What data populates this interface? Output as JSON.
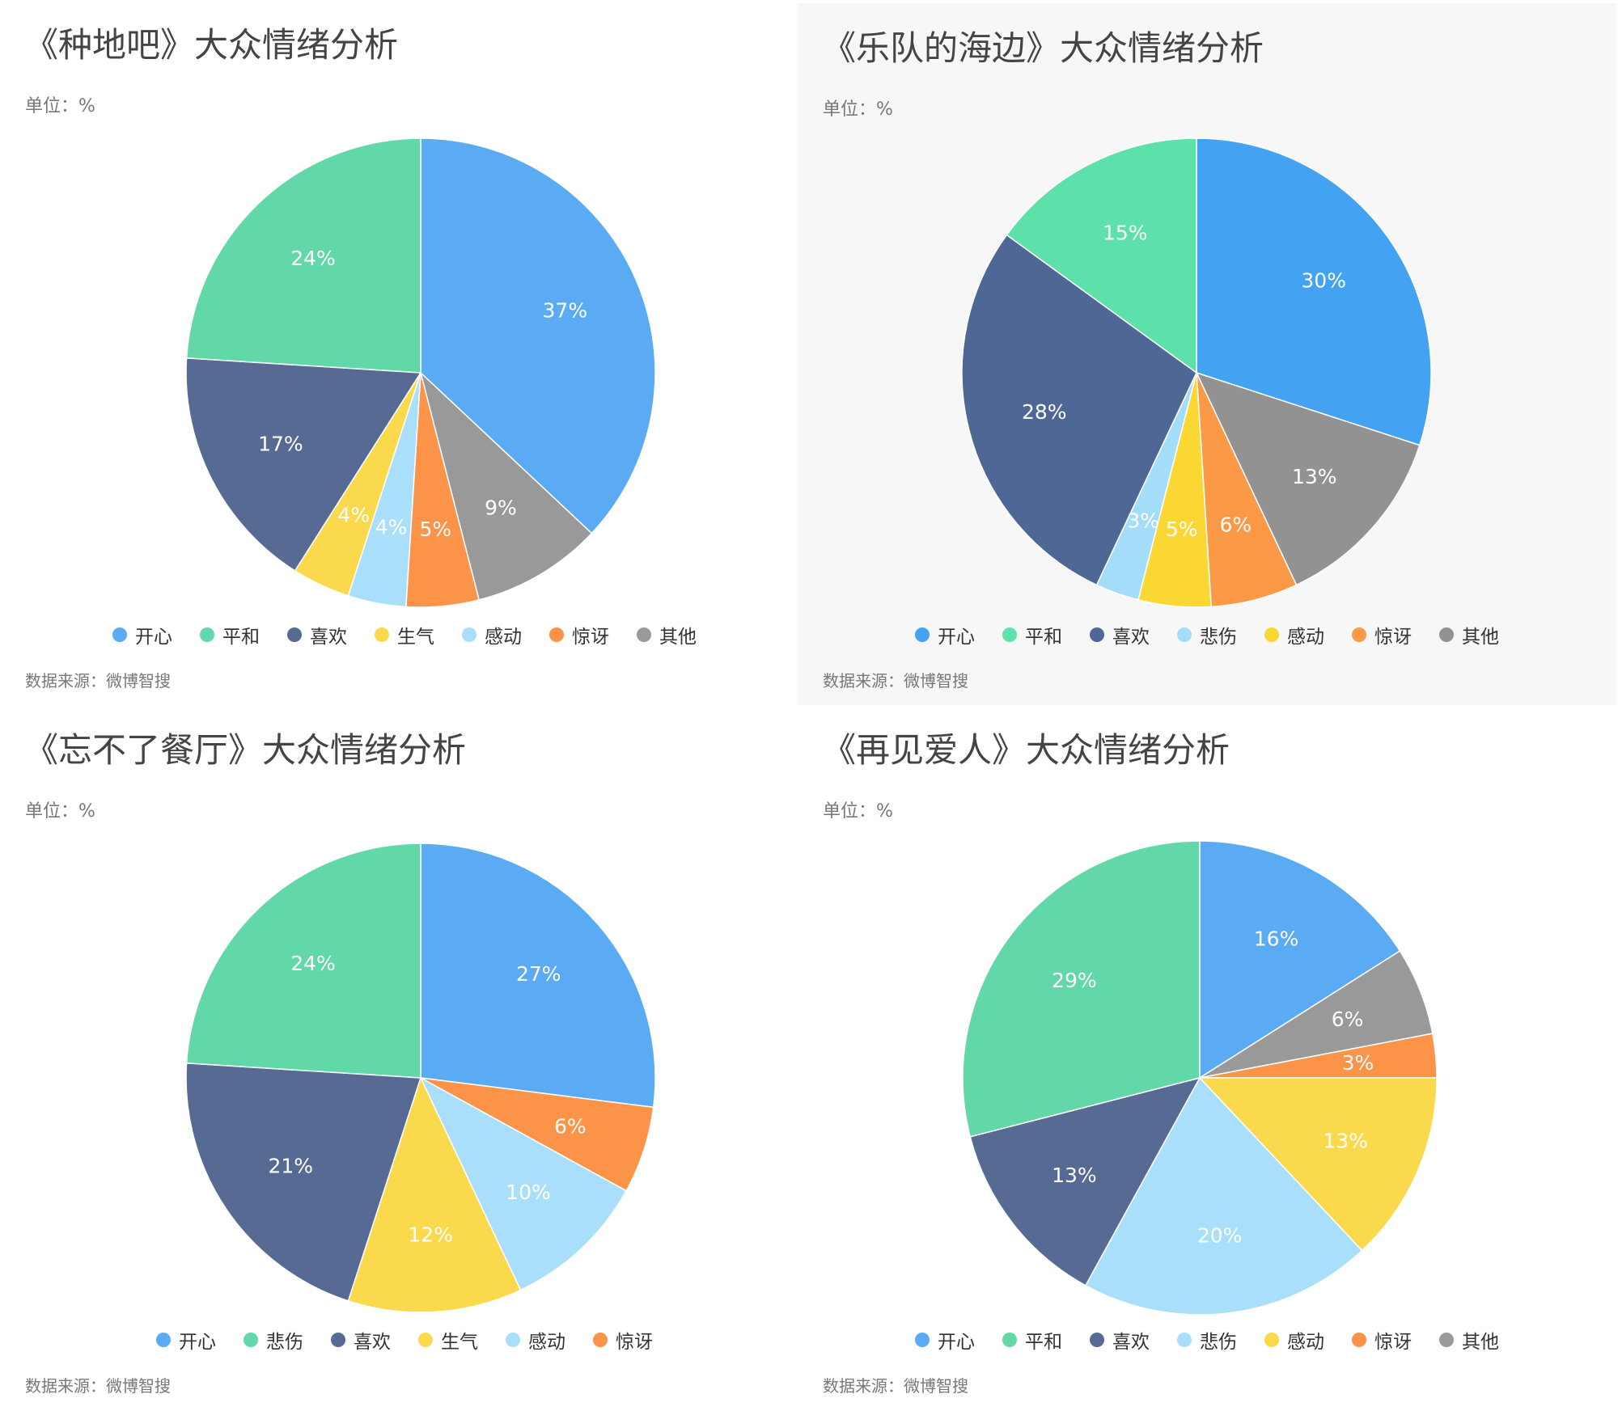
{
  "chart_data": [
    {
      "type": "pie",
      "title": "《种地吧》大众情绪分析",
      "unit": "单位：%",
      "source": "数据来源：微博智搜",
      "slices": [
        {
          "label": "开心",
          "value": 37,
          "text": "37%",
          "color": "#5aabf3"
        },
        {
          "label": "其他",
          "value": 9,
          "text": "9%",
          "color": "#999999"
        },
        {
          "label": "惊讶",
          "value": 5,
          "text": "5%",
          "color": "#fb9349"
        },
        {
          "label": "感动",
          "value": 4,
          "text": "4%",
          "color": "#a9dffa"
        },
        {
          "label": "生气",
          "value": 4,
          "text": "4%",
          "color": "#fbd94d"
        },
        {
          "label": "喜欢",
          "value": 17,
          "text": "17%",
          "color": "#566a94"
        },
        {
          "label": "平和",
          "value": 24,
          "text": "24%",
          "color": "#62d7a7"
        }
      ],
      "legend": [
        {
          "label": "开心",
          "color": "#5aabf3"
        },
        {
          "label": "平和",
          "color": "#62d7a7"
        },
        {
          "label": "喜欢",
          "color": "#566a94"
        },
        {
          "label": "生气",
          "color": "#fbd94d"
        },
        {
          "label": "感动",
          "color": "#a9dffa"
        },
        {
          "label": "惊讶",
          "color": "#fb9349"
        },
        {
          "label": "其他",
          "color": "#999999"
        }
      ]
    },
    {
      "type": "pie",
      "title": "《乐队的海边》大众情绪分析",
      "unit": "单位：%",
      "source": "数据来源：微博智搜",
      "slices": [
        {
          "label": "开心",
          "value": 30,
          "text": "30%",
          "color": "#43a2f2"
        },
        {
          "label": "其他",
          "value": 13,
          "text": "13%",
          "color": "#929292"
        },
        {
          "label": "惊讶",
          "value": 6,
          "text": "6%",
          "color": "#fb9946"
        },
        {
          "label": "感动",
          "value": 5,
          "text": "5%",
          "color": "#fbd733"
        },
        {
          "label": "悲伤",
          "value": 3,
          "text": "3%",
          "color": "#a3ddfa"
        },
        {
          "label": "喜欢",
          "value": 28,
          "text": "28%",
          "color": "#4e6794"
        },
        {
          "label": "平和",
          "value": 15,
          "text": "15%",
          "color": "#5ee0ab"
        }
      ],
      "legend": [
        {
          "label": "开心",
          "color": "#43a2f2"
        },
        {
          "label": "平和",
          "color": "#5ee0ab"
        },
        {
          "label": "喜欢",
          "color": "#4e6794"
        },
        {
          "label": "悲伤",
          "color": "#a3ddfa"
        },
        {
          "label": "感动",
          "color": "#fbd733"
        },
        {
          "label": "惊讶",
          "color": "#fb9946"
        },
        {
          "label": "其他",
          "color": "#929292"
        }
      ]
    },
    {
      "type": "pie",
      "title": "《忘不了餐厅》大众情绪分析",
      "unit": "单位：%",
      "source": "数据来源：微博智搜",
      "slices": [
        {
          "label": "开心",
          "value": 27,
          "text": "27%",
          "color": "#5aabf3"
        },
        {
          "label": "惊讶",
          "value": 6,
          "text": "6%",
          "color": "#fb9349"
        },
        {
          "label": "感动",
          "value": 10,
          "text": "10%",
          "color": "#a9dffa"
        },
        {
          "label": "生气",
          "value": 12,
          "text": "12%",
          "color": "#fbd94d"
        },
        {
          "label": "喜欢",
          "value": 21,
          "text": "21%",
          "color": "#566a94"
        },
        {
          "label": "悲伤",
          "value": 24,
          "text": "24%",
          "color": "#62d7a7"
        }
      ],
      "legend": [
        {
          "label": "开心",
          "color": "#5aabf3"
        },
        {
          "label": "悲伤",
          "color": "#62d7a7"
        },
        {
          "label": "喜欢",
          "color": "#566a94"
        },
        {
          "label": "生气",
          "color": "#fbd94d"
        },
        {
          "label": "感动",
          "color": "#a9dffa"
        },
        {
          "label": "惊讶",
          "color": "#fb9349"
        }
      ]
    },
    {
      "type": "pie",
      "title": "《再见爱人》大众情绪分析",
      "unit": "单位：%",
      "source": "数据来源：微博智搜",
      "slices": [
        {
          "label": "开心",
          "value": 16,
          "text": "16%",
          "color": "#5aabf3"
        },
        {
          "label": "其他",
          "value": 6,
          "text": "6%",
          "color": "#999999"
        },
        {
          "label": "惊讶",
          "value": 3,
          "text": "3%",
          "color": "#fb9349"
        },
        {
          "label": "感动",
          "value": 13,
          "text": "13%",
          "color": "#fbd94d"
        },
        {
          "label": "悲伤",
          "value": 20,
          "text": "20%",
          "color": "#a9dffa"
        },
        {
          "label": "喜欢",
          "value": 13,
          "text": "13%",
          "color": "#566a94"
        },
        {
          "label": "平和",
          "value": 29,
          "text": "29%",
          "color": "#62d7a7"
        }
      ],
      "legend": [
        {
          "label": "开心",
          "color": "#5aabf3"
        },
        {
          "label": "平和",
          "color": "#62d7a7"
        },
        {
          "label": "喜欢",
          "color": "#566a94"
        },
        {
          "label": "悲伤",
          "color": "#a9dffa"
        },
        {
          "label": "感动",
          "color": "#fbd94d"
        },
        {
          "label": "惊讶",
          "color": "#fb9349"
        },
        {
          "label": "其他",
          "color": "#999999"
        }
      ]
    }
  ]
}
